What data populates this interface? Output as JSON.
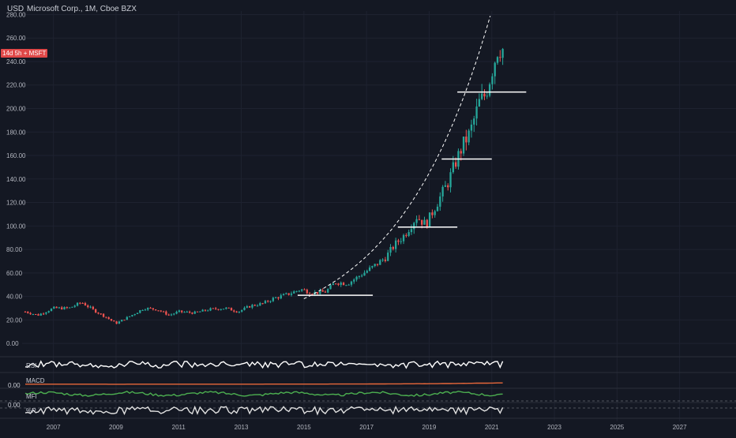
{
  "header": {
    "currency": "USD",
    "title": "Microsoft Corp., 1M, Cboe BZX",
    "price_tag": "14d 5h + MSFT"
  },
  "colors": {
    "background": "#141823",
    "up": "#26a69a",
    "down": "#ef5350",
    "rsi": "#ffffff",
    "macd": "#e8673a",
    "mfi": "#4caf50",
    "guide": "#ffffff"
  },
  "chart_data": {
    "type": "candlestick",
    "title": "Microsoft Corp., 1M, Cboe BZX",
    "ylabel": "USD",
    "ylim": [
      -10,
      283
    ],
    "y_ticks": [
      "280.00",
      "260.00",
      "240.00",
      "220.00",
      "200.00",
      "180.00",
      "160.00",
      "140.00",
      "120.00",
      "100.00",
      "80.00",
      "60.00",
      "40.00",
      "20.00",
      "0.00"
    ],
    "y_tick_values": [
      280,
      260,
      240,
      220,
      200,
      180,
      160,
      140,
      120,
      100,
      80,
      60,
      40,
      20,
      0
    ],
    "x_ticks": [
      "2007",
      "2009",
      "2011",
      "2013",
      "2015",
      "2017",
      "2019",
      "2021",
      "2023",
      "2025",
      "2027"
    ],
    "x_tick_values": [
      2007,
      2009,
      2011,
      2013,
      2015,
      2017,
      2019,
      2021,
      2023,
      2025,
      2027
    ],
    "xlim": [
      2006.0,
      2028.8
    ],
    "closes": [
      {
        "year": 2006.1,
        "value": 27
      },
      {
        "year": 2006.5,
        "value": 24
      },
      {
        "year": 2007.0,
        "value": 30
      },
      {
        "year": 2007.5,
        "value": 30
      },
      {
        "year": 2007.9,
        "value": 35
      },
      {
        "year": 2008.3,
        "value": 28
      },
      {
        "year": 2008.7,
        "value": 22
      },
      {
        "year": 2009.0,
        "value": 17
      },
      {
        "year": 2009.5,
        "value": 24
      },
      {
        "year": 2009.9,
        "value": 30
      },
      {
        "year": 2010.3,
        "value": 29
      },
      {
        "year": 2010.7,
        "value": 24
      },
      {
        "year": 2011.0,
        "value": 27
      },
      {
        "year": 2011.5,
        "value": 26
      },
      {
        "year": 2012.0,
        "value": 29
      },
      {
        "year": 2012.5,
        "value": 30
      },
      {
        "year": 2012.9,
        "value": 27
      },
      {
        "year": 2013.3,
        "value": 32
      },
      {
        "year": 2013.7,
        "value": 34
      },
      {
        "year": 2014.0,
        "value": 38
      },
      {
        "year": 2014.5,
        "value": 42
      },
      {
        "year": 2014.9,
        "value": 46
      },
      {
        "year": 2015.3,
        "value": 43
      },
      {
        "year": 2015.7,
        "value": 44
      },
      {
        "year": 2016.0,
        "value": 52
      },
      {
        "year": 2016.4,
        "value": 51
      },
      {
        "year": 2016.8,
        "value": 58
      },
      {
        "year": 2017.2,
        "value": 65
      },
      {
        "year": 2017.6,
        "value": 73
      },
      {
        "year": 2017.9,
        "value": 84
      },
      {
        "year": 2018.2,
        "value": 92
      },
      {
        "year": 2018.6,
        "value": 108
      },
      {
        "year": 2018.9,
        "value": 101
      },
      {
        "year": 2019.2,
        "value": 117
      },
      {
        "year": 2019.6,
        "value": 137
      },
      {
        "year": 2019.9,
        "value": 158
      },
      {
        "year": 2020.1,
        "value": 170
      },
      {
        "year": 2020.3,
        "value": 179
      },
      {
        "year": 2020.6,
        "value": 205
      },
      {
        "year": 2020.8,
        "value": 212
      },
      {
        "year": 2021.0,
        "value": 232
      },
      {
        "year": 2021.2,
        "value": 252
      },
      {
        "year": 2021.4,
        "value": 250
      }
    ],
    "support_lines": [
      {
        "x_start": 2014.8,
        "x_end": 2017.2,
        "value": 41
      },
      {
        "x_start": 2018.0,
        "x_end": 2019.9,
        "value": 99
      },
      {
        "x_start": 2019.4,
        "x_end": 2021.0,
        "value": 157
      },
      {
        "x_start": 2019.9,
        "x_end": 2022.1,
        "value": 214
      }
    ],
    "indicators": [
      {
        "name": "RSI",
        "value_label": ""
      },
      {
        "name": "MACD",
        "value_label": "0.00"
      },
      {
        "name": "MFI",
        "value_label": ""
      },
      {
        "name": "%R",
        "value_label": "0.00"
      }
    ]
  }
}
